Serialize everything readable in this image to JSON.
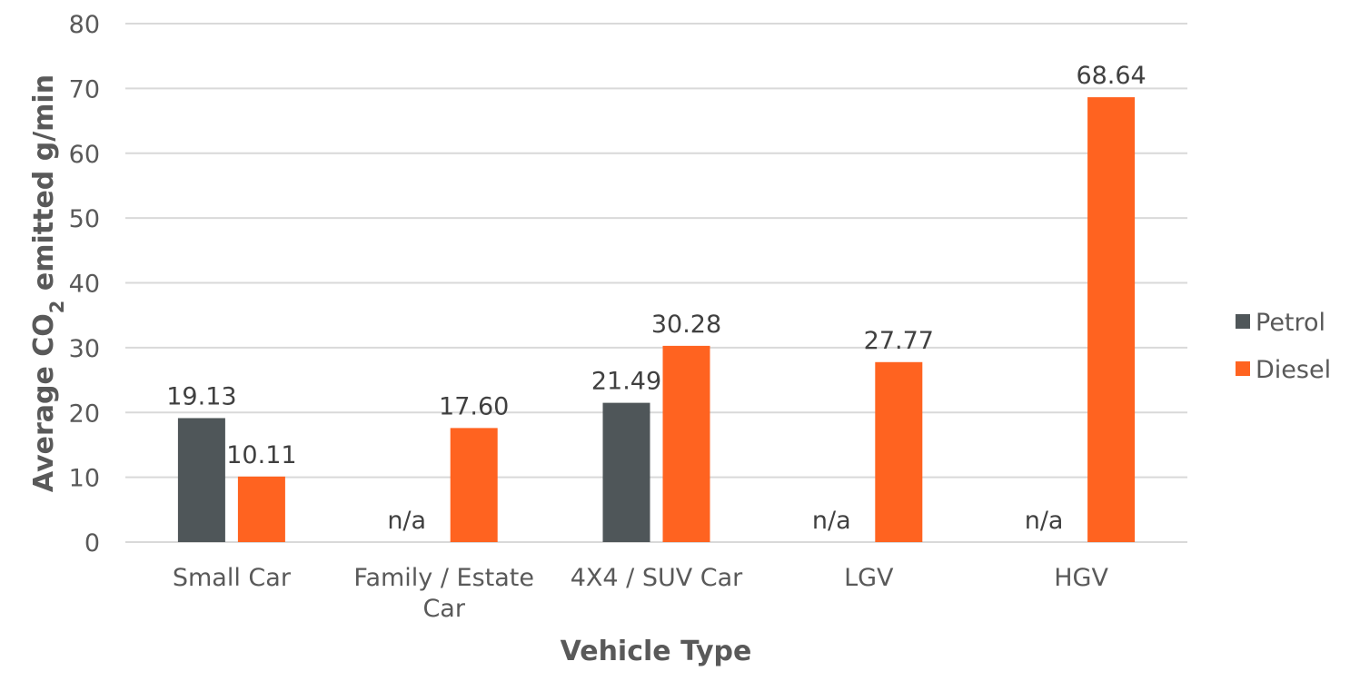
{
  "chart_data": {
    "type": "bar",
    "categories": [
      [
        "Small Car"
      ],
      [
        "Family / Estate",
        "Car"
      ],
      [
        "4X4 / SUV Car"
      ],
      [
        "LGV"
      ],
      [
        "HGV"
      ]
    ],
    "series": [
      {
        "name": "Petrol",
        "color": "#4f5659",
        "values": [
          19.13,
          null,
          21.49,
          null,
          null
        ],
        "labels": [
          "19.13",
          "n/a",
          "21.49",
          "n/a",
          "n/a"
        ]
      },
      {
        "name": "Diesel",
        "color": "#ff6320",
        "values": [
          10.11,
          17.6,
          30.28,
          27.77,
          68.64
        ],
        "labels": [
          "10.11",
          "17.60",
          "30.28",
          "27.77",
          "68.64"
        ]
      }
    ],
    "xlabel": "Vehicle Type",
    "ylabel": {
      "prefix": "Average CO",
      "subscript": "2",
      "suffix": " emitted g/min"
    },
    "ylim": [
      0,
      80
    ],
    "yticks": [
      0,
      10,
      20,
      30,
      40,
      50,
      60,
      70,
      80
    ],
    "grid": true,
    "legend_position": "right"
  }
}
